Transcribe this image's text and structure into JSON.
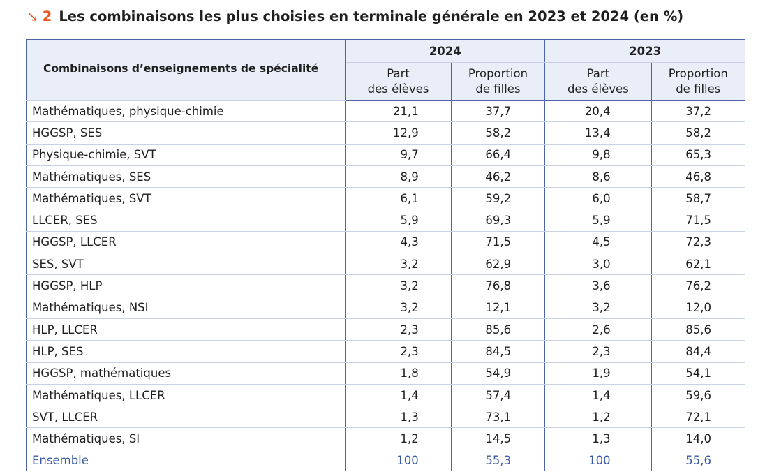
{
  "title": {
    "arrow": "↘",
    "number": "2",
    "text": "Les combinaisons les plus choisies en terminale générale en 2023 et 2024 (en %)"
  },
  "table": {
    "row_header": "Combinaisons d’enseignements de spécialité",
    "years": [
      "2024",
      "2023"
    ],
    "sub_headers": [
      [
        "Part",
        "des élèves"
      ],
      [
        "Proportion",
        "de filles"
      ],
      [
        "Part",
        "des élèves"
      ],
      [
        "Proportion",
        "de filles"
      ]
    ],
    "rows": [
      {
        "label": "Mathématiques, physique-chimie",
        "values": [
          "21,1",
          "37,7",
          "20,4",
          "37,2"
        ]
      },
      {
        "label": "HGGSP, SES",
        "values": [
          "12,9",
          "58,2",
          "13,4",
          "58,2"
        ]
      },
      {
        "label": "Physique-chimie, SVT",
        "values": [
          "9,7",
          "66,4",
          "9,8",
          "65,3"
        ]
      },
      {
        "label": "Mathématiques, SES",
        "values": [
          "8,9",
          "46,2",
          "8,6",
          "46,8"
        ]
      },
      {
        "label": "Mathématiques, SVT",
        "values": [
          "6,1",
          "59,2",
          "6,0",
          "58,7"
        ]
      },
      {
        "label": "LLCER, SES",
        "values": [
          "5,9",
          "69,3",
          "5,9",
          "71,5"
        ]
      },
      {
        "label": "HGGSP, LLCER",
        "values": [
          "4,3",
          "71,5",
          "4,5",
          "72,3"
        ]
      },
      {
        "label": "SES, SVT",
        "values": [
          "3,2",
          "62,9",
          "3,0",
          "62,1"
        ]
      },
      {
        "label": "HGGSP, HLP",
        "values": [
          "3,2",
          "76,8",
          "3,6",
          "76,2"
        ]
      },
      {
        "label": "Mathématiques, NSI",
        "values": [
          "3,2",
          "12,1",
          "3,2",
          "12,0"
        ]
      },
      {
        "label": "HLP, LLCER",
        "values": [
          "2,3",
          "85,6",
          "2,6",
          "85,6"
        ]
      },
      {
        "label": "HLP, SES",
        "values": [
          "2,3",
          "84,5",
          "2,3",
          "84,4"
        ]
      },
      {
        "label": "HGGSP, mathématiques",
        "values": [
          "1,8",
          "54,9",
          "1,9",
          "54,1"
        ]
      },
      {
        "label": "Mathématiques, LLCER",
        "values": [
          "1,4",
          "57,4",
          "1,4",
          "59,6"
        ]
      },
      {
        "label": "SVT, LLCER",
        "values": [
          "1,3",
          "73,1",
          "1,2",
          "72,1"
        ]
      },
      {
        "label": "Mathématiques, SI",
        "values": [
          "1,2",
          "14,5",
          "1,3",
          "14,0"
        ]
      }
    ],
    "total": {
      "label": "Ensemble",
      "values": [
        "100",
        "55,3",
        "100",
        "55,6"
      ]
    }
  },
  "colors": {
    "accent": "#e8571e",
    "border": "#4a66a8",
    "header_bg": "#eaeef8",
    "total_text": "#3b5aa6"
  }
}
